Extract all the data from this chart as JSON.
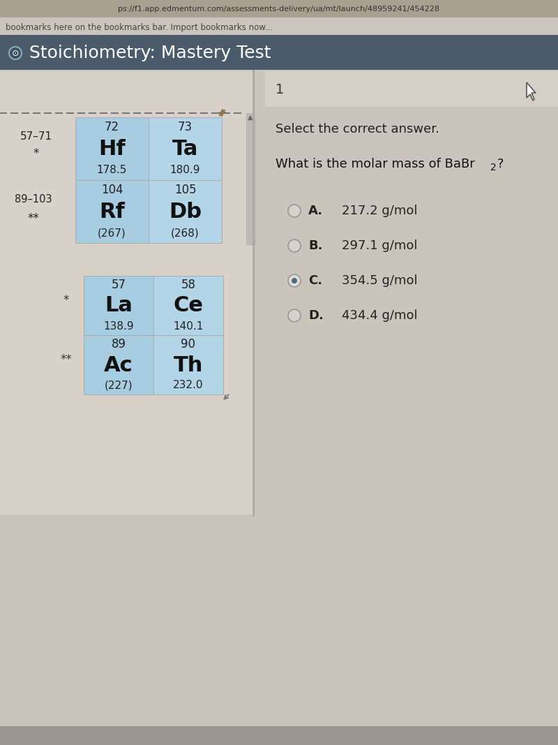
{
  "bg_color": "#cac4bc",
  "url_bg": "#b8b0a4",
  "url_text": "ps://f1.app.edmentum.com/assessments-delivery/ua/mt/launch/48959241/454228",
  "bookmark_bg": "#ccc6be",
  "bookmark_text": "bookmarks here on the bookmarks bar. Import bookmarks now...",
  "header_bg": "#4a5c6c",
  "header_text": "Stoichiometry: Mastery Test",
  "question_number": "1",
  "select_text": "Select the correct answer.",
  "choices": [
    {
      "label": "A.",
      "text": "217.2 g/mol",
      "selected": false
    },
    {
      "label": "B.",
      "text": "297.1 g/mol",
      "selected": false
    },
    {
      "label": "C.",
      "text": "354.5 g/mol",
      "selected": true
    },
    {
      "label": "D.",
      "text": "434.4 g/mol",
      "selected": false
    }
  ],
  "main_cells": [
    {
      "row": 0,
      "col": 0,
      "num": "72",
      "sym": "Hf",
      "mass": "178.5",
      "bg": "#a8cce0"
    },
    {
      "row": 0,
      "col": 1,
      "num": "73",
      "sym": "Ta",
      "mass": "180.9",
      "bg": "#b4d4e8"
    },
    {
      "row": 1,
      "col": 0,
      "num": "104",
      "sym": "Rf",
      "mass": "(267)",
      "bg": "#a8cce0"
    },
    {
      "row": 1,
      "col": 1,
      "num": "105",
      "sym": "Db",
      "mass": "(268)",
      "bg": "#b4d4e8"
    }
  ],
  "bot_cells": [
    {
      "row": 0,
      "col": 0,
      "num": "57",
      "sym": "La",
      "mass": "138.9",
      "bg": "#a8cce0"
    },
    {
      "row": 0,
      "col": 1,
      "num": "58",
      "sym": "Ce",
      "mass": "140.1",
      "bg": "#b4d4e8"
    },
    {
      "row": 1,
      "col": 0,
      "num": "89",
      "sym": "Ac",
      "mass": "(227)",
      "bg": "#a8cce0"
    },
    {
      "row": 1,
      "col": 1,
      "num": "90",
      "sym": "Th",
      "mass": "232.0",
      "bg": "#b4d4e8"
    }
  ]
}
